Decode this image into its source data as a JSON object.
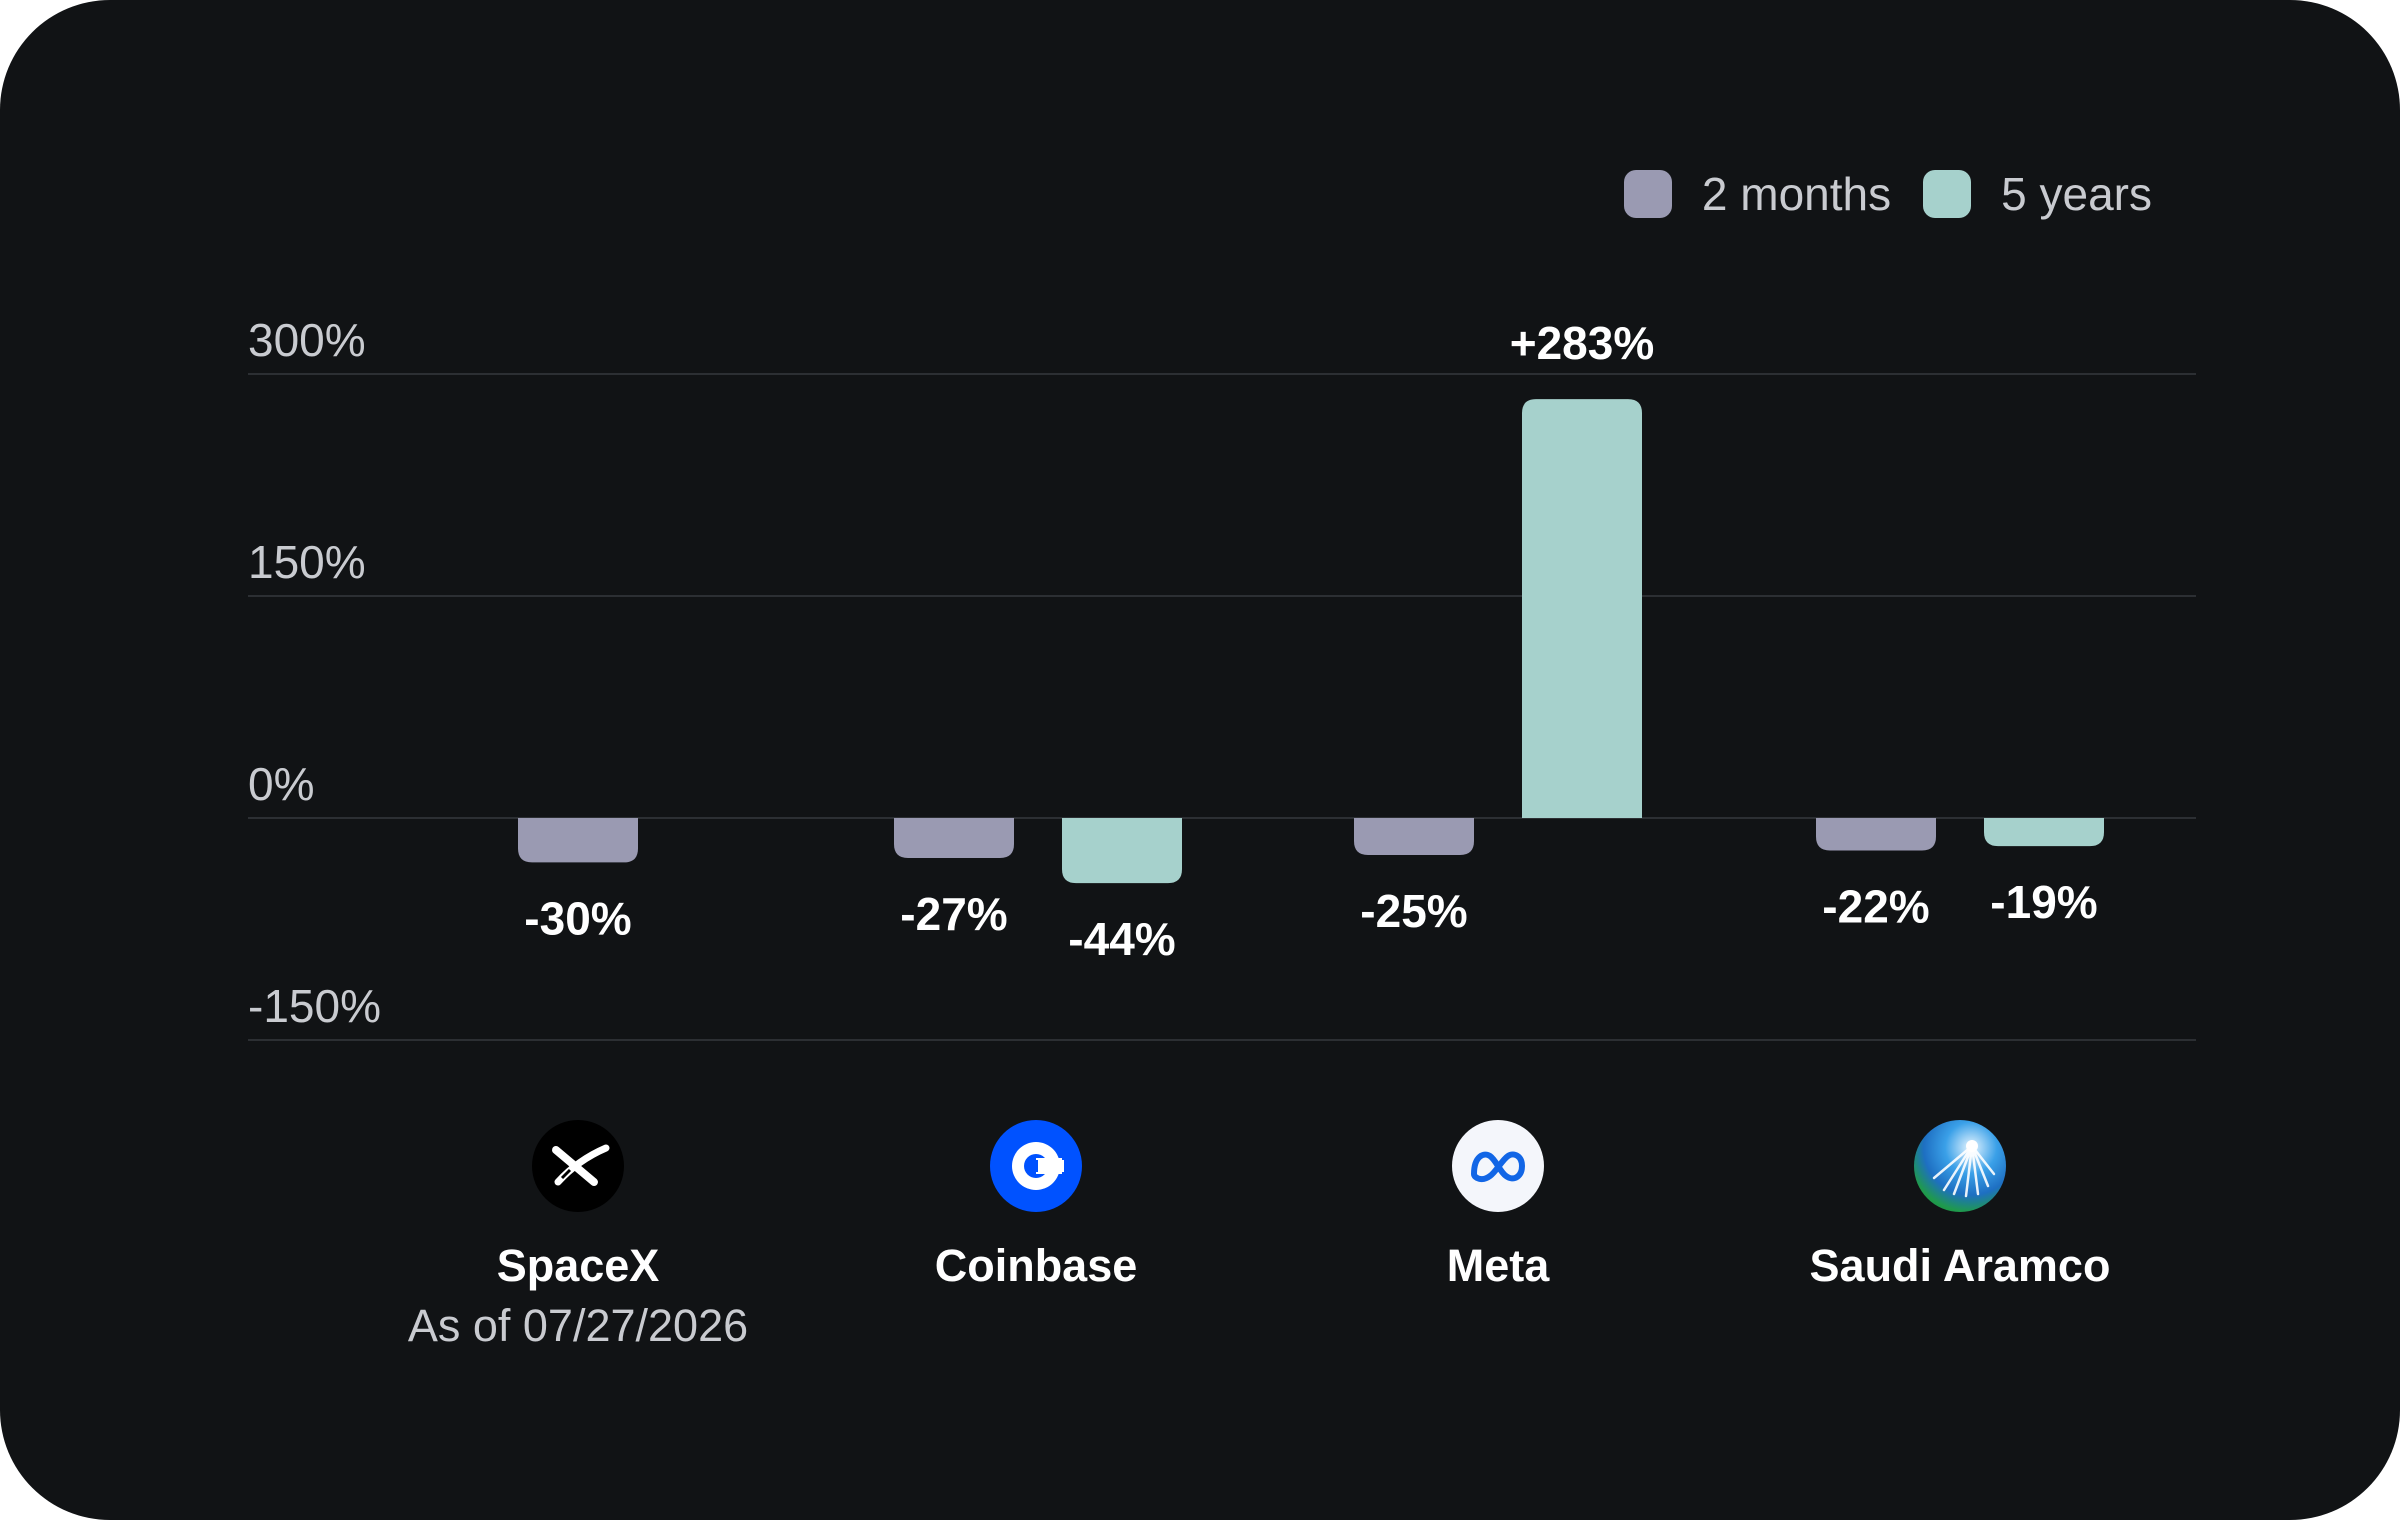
{
  "chart_data": {
    "type": "bar",
    "categories": [
      "SpaceX",
      "Coinbase",
      "Meta",
      "Saudi Aramco"
    ],
    "series": [
      {
        "name": "2 months",
        "color": "#9a9ab2",
        "values": [
          -30,
          -27,
          -25,
          -22
        ],
        "labels": [
          "-30%",
          "-27%",
          "-25%",
          "-22%"
        ]
      },
      {
        "name": "5 years",
        "color": "#a6d1cc",
        "values": [
          null,
          -44,
          283,
          -19
        ],
        "labels": [
          "",
          "-44%",
          "+283%",
          "-19%"
        ]
      }
    ],
    "ylim": [
      -150,
      300
    ],
    "yticks": [
      300,
      150,
      0,
      -150
    ],
    "ytick_labels": [
      "300%",
      "150%",
      "0%",
      "-150%"
    ],
    "grid": true,
    "legend_position": "top-right"
  },
  "legend": [
    {
      "label": "2 months",
      "color": "#9a9ab2"
    },
    {
      "label": "5 years",
      "color": "#a6d1cc"
    }
  ],
  "companies": [
    {
      "name": "SpaceX",
      "note": "As of 07/27/2026",
      "icon": "spacex-logo-icon"
    },
    {
      "name": "Coinbase",
      "note": "",
      "icon": "coinbase-logo-icon"
    },
    {
      "name": "Meta",
      "note": "",
      "icon": "meta-logo-icon"
    },
    {
      "name": "Saudi Aramco",
      "note": "",
      "icon": "aramco-logo-icon"
    }
  ],
  "colors": {
    "background": "#111315",
    "gridline": "#2c2f33",
    "text_muted": "#c9cbd0",
    "text_strong": "#ffffff",
    "coinbase_blue": "#0052ff"
  }
}
